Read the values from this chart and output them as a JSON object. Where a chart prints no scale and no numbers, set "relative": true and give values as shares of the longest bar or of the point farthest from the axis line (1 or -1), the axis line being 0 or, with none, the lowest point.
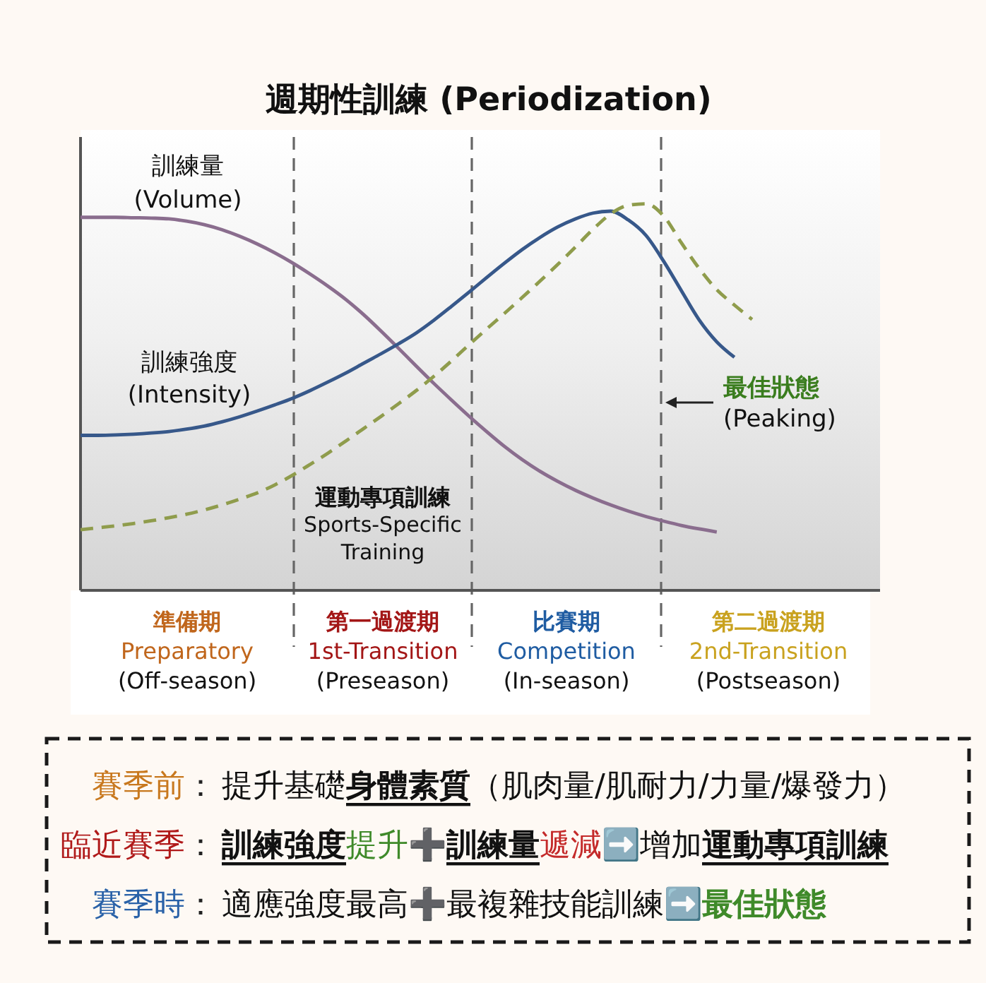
{
  "chart_data": {
    "type": "line",
    "title": "週期性訓練 (Periodization)",
    "relative": true,
    "grid": "x",
    "categories": [
      null,
      null,
      null,
      null,
      null,
      null,
      null,
      null,
      null,
      null,
      null,
      null,
      null,
      null,
      null,
      null,
      null,
      null,
      null,
      null,
      null,
      null,
      null,
      null,
      null,
      null,
      null,
      null,
      null,
      null,
      null,
      null,
      null,
      null,
      null,
      null,
      null,
      null,
      null,
      null,
      null,
      null,
      null,
      null,
      null,
      null
    ],
    "series": [
      {
        "name": "訓練量\n(Volume)",
        "color": "#8a6d8e",
        "values": [
          0.965,
          0.965,
          0.965,
          0.964,
          0.963,
          0.961,
          0.955,
          0.946,
          0.933,
          0.916,
          0.896,
          0.873,
          0.847,
          0.818,
          0.787,
          0.753,
          0.714,
          0.671,
          0.626,
          0.58,
          0.535,
          0.492,
          0.45,
          0.41,
          0.372,
          0.338,
          0.308,
          0.282,
          0.259,
          0.239,
          0.221,
          0.205,
          0.191,
          0.179,
          0.168,
          0.159,
          0.151,
          null,
          null,
          null,
          null,
          null,
          null,
          null,
          null,
          null
        ]
      },
      {
        "name": "訓練強度\n(Intensity)",
        "color": "#37588a",
        "values": [
          0.401,
          0.401,
          0.402,
          0.404,
          0.407,
          0.411,
          0.417,
          0.425,
          0.436,
          0.449,
          0.464,
          0.48,
          0.497,
          0.517,
          0.539,
          0.562,
          0.587,
          0.612,
          0.638,
          0.666,
          0.699,
          0.735,
          0.772,
          0.81,
          0.847,
          0.882,
          0.913,
          0.94,
          0.961,
          0.976,
          0.981,
          0.958,
          0.918,
          0.851,
          0.775,
          0.7,
          0.643,
          0.603,
          null,
          null,
          null,
          null,
          null,
          null,
          null,
          null
        ]
      },
      {
        "name": "運動專項訓練\nSports-Specific\nTraining",
        "color": "#8f9c4c",
        "line_style": "dashed",
        "values": [
          0.157,
          0.162,
          0.167,
          0.173,
          0.18,
          0.188,
          0.197,
          0.208,
          0.221,
          0.236,
          0.252,
          0.273,
          0.298,
          0.326,
          0.355,
          0.386,
          0.418,
          0.45,
          0.483,
          0.517,
          0.554,
          0.594,
          0.636,
          0.677,
          0.717,
          0.758,
          0.8,
          0.843,
          0.888,
          0.934,
          0.974,
          0.996,
          1.0,
          0.968,
          0.899,
          0.833,
          0.778,
          0.738,
          0.701,
          null,
          null,
          null,
          null,
          null,
          null,
          null
        ]
      }
    ],
    "annotations": [
      "準備期\nPreparatory\n(Off-season)",
      "第一過渡期\n1st-Transition\n(Preseason)",
      "比賽期\nCompetition\n(In-season)",
      "第二過渡期\n2nd-Transition\n(Postseason)",
      "最佳狀態\n(Peaking)",
      "賽季前",
      "：",
      "提升基礎",
      "身體素質",
      "（肌肉量/肌耐力/力量/爆發力）",
      "臨近賽季",
      "：",
      "訓練強度",
      "提升",
      "➕",
      "訓練量",
      "遞減",
      "➡️",
      "增加",
      "運動專項訓練",
      "賽季時",
      "：",
      "適應強度最高",
      "➕",
      "最複雜技能訓練",
      "➡️",
      "最佳狀態"
    ]
  }
}
